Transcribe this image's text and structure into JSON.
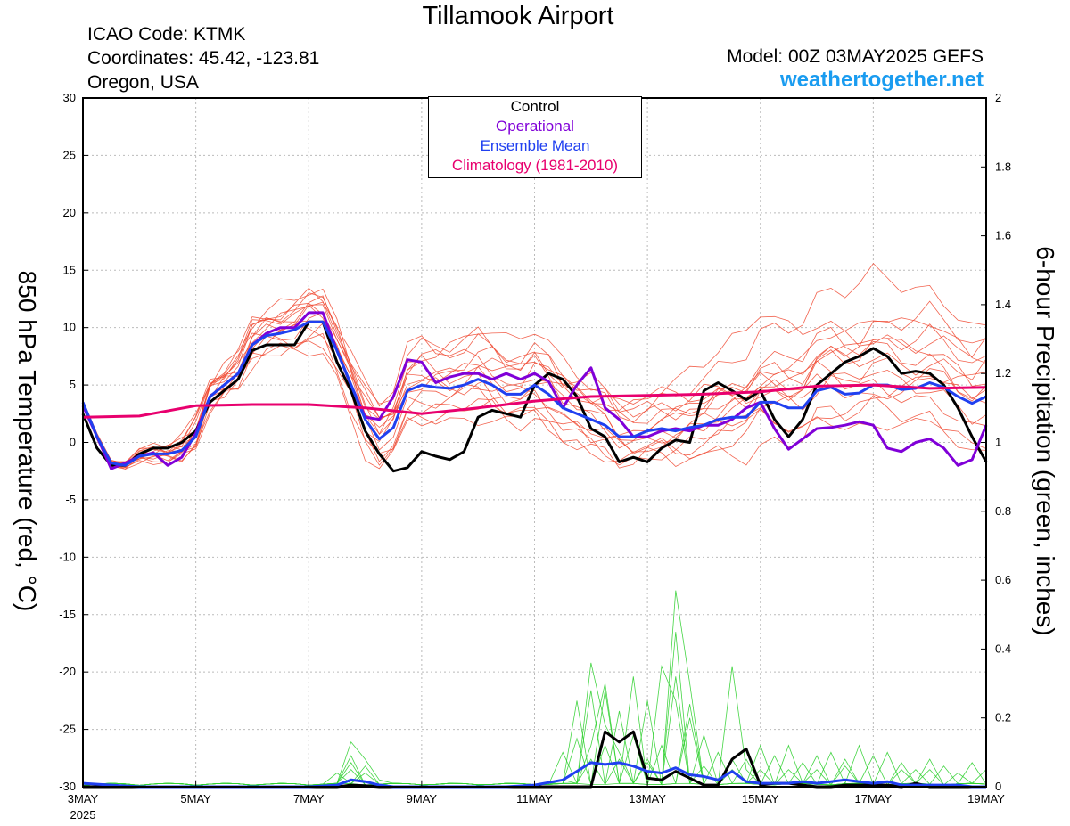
{
  "header": {
    "title": "Tillamook Airport",
    "icao": "ICAO Code: KTMK",
    "coordinates": "Coordinates: 45.42, -123.81",
    "region": "Oregon, USA",
    "model": "Model: 00Z 03MAY2025 GEFS",
    "site": "weathertogether.net"
  },
  "colors": {
    "control": "#000000",
    "operational": "#8000d8",
    "ensemble_mean": "#2040f0",
    "climatology": "#e8006e",
    "temp_members": "#f04830",
    "precip_members": "#30d030",
    "site": "#1a9cf0",
    "grid": "#bbbbbb"
  },
  "legend": [
    {
      "label": "Control",
      "color": "#000000"
    },
    {
      "label": "Operational",
      "color": "#8000d8"
    },
    {
      "label": "Ensemble Mean",
      "color": "#2040f0"
    },
    {
      "label": "Climatology (1981-2010)",
      "color": "#e8006e"
    }
  ],
  "chart_data": {
    "type": "line",
    "x_unit": "days since 3MAY 2025 00Z",
    "xlim": [
      0,
      16
    ],
    "x_ticks": [
      {
        "x": 0,
        "label": "3MAY",
        "sub": "2025"
      },
      {
        "x": 2,
        "label": "5MAY"
      },
      {
        "x": 4,
        "label": "7MAY"
      },
      {
        "x": 6,
        "label": "9MAY"
      },
      {
        "x": 8,
        "label": "11MAY"
      },
      {
        "x": 10,
        "label": "13MAY"
      },
      {
        "x": 12,
        "label": "15MAY"
      },
      {
        "x": 14,
        "label": "17MAY"
      },
      {
        "x": 16,
        "label": "19MAY"
      }
    ],
    "y_left": {
      "label": "850 hPa Temperature (red, °C)",
      "lim": [
        -30,
        30
      ],
      "ticks": [
        -30,
        -25,
        -20,
        -15,
        -10,
        -5,
        0,
        5,
        10,
        15,
        20,
        25,
        30
      ]
    },
    "y_right": {
      "label": "6-hour Precipitation (green, inches)",
      "lim": [
        0,
        2
      ],
      "ticks": [
        0,
        0.2,
        0.4,
        0.6,
        0.8,
        1,
        1.2,
        1.4,
        1.6,
        1.8,
        2
      ]
    },
    "grid": true,
    "legend_position": "top-center",
    "temperature_series": [
      {
        "name": "Control",
        "x": [
          0,
          0.25,
          0.5,
          0.75,
          1,
          1.25,
          1.5,
          1.75,
          2,
          2.25,
          2.5,
          2.75,
          3,
          3.25,
          3.5,
          3.75,
          4,
          4.25,
          4.5,
          4.75,
          5,
          5.25,
          5.5,
          5.75,
          6,
          6.25,
          6.5,
          6.75,
          7,
          7.25,
          7.5,
          7.75,
          8,
          8.25,
          8.5,
          8.75,
          9,
          9.25,
          9.5,
          9.75,
          10,
          10.25,
          10.5,
          10.75,
          11,
          11.25,
          11.5,
          11.75,
          12,
          12.25,
          12.5,
          12.75,
          13,
          13.25,
          13.5,
          13.75,
          14,
          14.25,
          14.5,
          14.75,
          15,
          15.25,
          15.5,
          15.75,
          16
        ],
        "y": [
          2.5,
          -0.5,
          -2,
          -2,
          -1,
          -0.5,
          -0.5,
          0,
          1,
          3.5,
          4.5,
          5.5,
          8,
          8.5,
          8.5,
          8.5,
          10.5,
          10.5,
          7,
          4.5,
          1,
          -1,
          -2.5,
          -2.2,
          -0.8,
          -1.2,
          -1.5,
          -0.8,
          2.2,
          2.8,
          2.5,
          2.2,
          5,
          6,
          5.5,
          4,
          1.2,
          0.5,
          -1.7,
          -1.3,
          -1.7,
          -0.5,
          0.2,
          0,
          4.5,
          5.2,
          4.5,
          3.7,
          4.5,
          2,
          0.5,
          2,
          5,
          6,
          7,
          7.5,
          8.2,
          7.5,
          6,
          6.2,
          6,
          5,
          3,
          0.5,
          -1.7
        ]
      },
      {
        "name": "Operational",
        "x": [
          0,
          0.25,
          0.5,
          0.75,
          1,
          1.25,
          1.5,
          1.75,
          2,
          2.25,
          2.5,
          2.75,
          3,
          3.25,
          3.5,
          3.75,
          4,
          4.25,
          4.5,
          4.75,
          5,
          5.25,
          5.5,
          5.75,
          6,
          6.25,
          6.5,
          6.75,
          7,
          7.25,
          7.5,
          7.75,
          8,
          8.25,
          8.5,
          8.75,
          9,
          9.25,
          9.5,
          9.75,
          10,
          10.25,
          10.5,
          10.75,
          11,
          11.25,
          11.5,
          11.75,
          12,
          12.25,
          12.5,
          12.75,
          13,
          13.25,
          13.5,
          13.75,
          14,
          14.25,
          14.5,
          14.75,
          15,
          15.25,
          15.5,
          15.75,
          16
        ],
        "y": [
          3.2,
          0.5,
          -2.3,
          -1.8,
          -1.2,
          -0.9,
          -2,
          -1.3,
          0.8,
          4,
          5,
          6,
          8.5,
          9.5,
          10,
          10,
          11.3,
          11.3,
          8,
          5,
          2.2,
          2,
          4,
          7.2,
          7,
          5.2,
          5.7,
          6,
          6,
          5.5,
          6,
          5.5,
          6,
          5.3,
          3,
          5,
          6.5,
          3,
          2,
          0.5,
          0.5,
          1,
          1.2,
          1,
          1.5,
          1.5,
          2,
          3,
          3.5,
          1.2,
          -0.6,
          0.3,
          1.2,
          1.3,
          1.5,
          1.8,
          1.5,
          -0.5,
          -0.8,
          0,
          0.3,
          -0.5,
          -2,
          -1.5,
          1.5
        ]
      },
      {
        "name": "Ensemble Mean",
        "x": [
          0,
          0.25,
          0.5,
          0.75,
          1,
          1.25,
          1.5,
          1.75,
          2,
          2.25,
          2.5,
          2.75,
          3,
          3.25,
          3.5,
          3.75,
          4,
          4.25,
          4.5,
          4.75,
          5,
          5.25,
          5.5,
          5.75,
          6,
          6.25,
          6.5,
          6.75,
          7,
          7.25,
          7.5,
          7.75,
          8,
          8.25,
          8.5,
          8.75,
          9,
          9.25,
          9.5,
          9.75,
          10,
          10.25,
          10.5,
          10.75,
          11,
          11.25,
          11.5,
          11.75,
          12,
          12.25,
          12.5,
          12.75,
          13,
          13.25,
          13.5,
          13.75,
          14,
          14.25,
          14.5,
          14.75,
          15,
          15.25,
          15.5,
          15.75,
          16
        ],
        "y": [
          3.5,
          0.5,
          -1.8,
          -2,
          -1.2,
          -1,
          -1,
          -0.7,
          0.5,
          4,
          5,
          6,
          8.5,
          9.3,
          9.5,
          9.8,
          10.5,
          10.5,
          8,
          5,
          2,
          0.3,
          1.3,
          4.5,
          5,
          4.8,
          4.7,
          5,
          5.5,
          5,
          4.2,
          4.2,
          5,
          4.2,
          3,
          2.5,
          2,
          1.5,
          0.5,
          0.5,
          1,
          1.2,
          1,
          1.3,
          1.5,
          2,
          2.2,
          2.2,
          3.5,
          3.5,
          3,
          3,
          4.5,
          4.8,
          4.2,
          4.3,
          5,
          5,
          4.6,
          4.7,
          5.2,
          4.8,
          4,
          3.4,
          4
        ]
      },
      {
        "name": "Climatology (1981-2010)",
        "x": [
          0,
          1,
          2,
          3,
          4,
          5,
          6,
          7,
          8,
          9,
          10,
          11,
          12,
          13,
          14,
          15,
          16
        ],
        "y": [
          2.2,
          2.3,
          3.2,
          3.3,
          3.3,
          3,
          2.5,
          3,
          3.6,
          4,
          4.1,
          4.2,
          4.4,
          4.9,
          5,
          4.7,
          4.8
        ]
      }
    ],
    "temp_member_offsets": [
      [
        0.5,
        1,
        2,
        1.5,
        2.5,
        1,
        0.8,
        1.5,
        2.5,
        2,
        1.2,
        1.8,
        3,
        2.5,
        3.5,
        4.5,
        3
      ],
      [
        -0.5,
        -1,
        -1.5,
        -1,
        -2.5,
        -3,
        -2,
        -1.5,
        -3,
        -2.5,
        -2,
        -3,
        -1,
        -2.5,
        -3.5,
        -3,
        -4
      ],
      [
        0,
        0.5,
        0.8,
        1,
        1.5,
        2.5,
        3.5,
        4,
        2.5,
        1.5,
        3,
        5.5,
        8,
        6,
        4,
        3.5,
        5
      ],
      [
        -0.3,
        -0.5,
        0,
        -1.5,
        -2,
        -1,
        -2.5,
        -3.5,
        -1.5,
        -0.5,
        -1,
        -2.5,
        -4,
        -2,
        -1.5,
        -3,
        -5
      ],
      [
        0.2,
        0.3,
        1.5,
        2.5,
        3,
        1.5,
        0.5,
        -0.5,
        1.5,
        3.5,
        2,
        1,
        2.5,
        4.5,
        6,
        5.5,
        3.5
      ],
      [
        0.4,
        -0.2,
        -1,
        0.5,
        1,
        2,
        1.5,
        -1,
        -2,
        -1,
        0.5,
        2.5,
        1,
        0,
        2,
        1,
        0.5
      ],
      [
        -0.1,
        0.8,
        2.5,
        1,
        -0.5,
        -1.5,
        -3,
        -2,
        0.5,
        1,
        -1.5,
        -2,
        0.5,
        2,
        0,
        -1.5,
        -2.5
      ],
      [
        0.6,
        0,
        -0.5,
        -2,
        -1,
        0.5,
        2.5,
        3.5,
        2,
        0,
        -1,
        0,
        1.5,
        3,
        4.5,
        3,
        1.5
      ],
      [
        -0.4,
        0.4,
        0.5,
        1.5,
        2,
        3,
        4,
        2,
        -0.5,
        -1.5,
        0.5,
        1.5,
        3.5,
        5,
        3.5,
        2,
        0
      ],
      [
        0.3,
        -0.6,
        -1.2,
        -0.5,
        0.5,
        -0.5,
        1,
        1.5,
        3,
        2.5,
        1.5,
        3,
        2,
        1,
        -1,
        0.5,
        2.5
      ],
      [
        -0.2,
        0.2,
        1,
        0,
        -1.5,
        -2,
        -1,
        0.5,
        -1,
        -2,
        -2.5,
        -1,
        0,
        1,
        1.5,
        -0.5,
        -1.5
      ],
      [
        0.1,
        0.6,
        1.2,
        2,
        1,
        0,
        -1.5,
        -0.5,
        1,
        2,
        3.5,
        2.5,
        1,
        2.5,
        5,
        6.5,
        4.5
      ],
      [
        -0.6,
        -0.3,
        0.3,
        0.8,
        2,
        1,
        0,
        2.5,
        3.5,
        1,
        -0.5,
        0.5,
        -1,
        -2.5,
        -1,
        1,
        0
      ],
      [
        0.2,
        -0.8,
        -0.8,
        -1,
        0,
        1.5,
        2,
        0,
        -2.5,
        -3,
        -1.5,
        0,
        2,
        3.5,
        2.5,
        1.5,
        3
      ],
      [
        -0.5,
        0.3,
        1.8,
        2.5,
        1.5,
        0.5,
        2.5,
        4.5,
        5,
        3,
        2,
        4,
        6,
        8,
        10,
        8,
        6
      ]
    ],
    "precipitation_series": [
      {
        "name": "Control",
        "x": [
          0,
          0.5,
          1,
          1.5,
          2,
          2.5,
          3,
          3.5,
          4,
          4.5,
          4.75,
          5,
          5.25,
          5.5,
          6,
          6.5,
          7,
          7.5,
          8,
          8.5,
          9,
          9.25,
          9.5,
          9.75,
          10,
          10.25,
          10.5,
          10.75,
          11,
          11.25,
          11.5,
          11.75,
          12,
          12.25,
          12.5,
          12.75,
          13,
          13.25,
          13.5,
          13.75,
          14,
          14.25,
          14.5,
          14.75,
          15,
          15.25,
          15.5,
          15.75,
          16
        ],
        "y": [
          0,
          0,
          0,
          0,
          0,
          0,
          0,
          0,
          0,
          0,
          0.005,
          0.003,
          0,
          0,
          0,
          0,
          0,
          0,
          0,
          0,
          0,
          0.16,
          0.13,
          0.16,
          0.025,
          0.02,
          0.045,
          0.025,
          0.005,
          0.005,
          0.08,
          0.11,
          0.005,
          0.01,
          0.01,
          0.005,
          0,
          0,
          0.005,
          0.005,
          0.005,
          0.005,
          0,
          0.01,
          0,
          0,
          0,
          0,
          0
        ]
      },
      {
        "name": "Ensemble Mean",
        "x": [
          0,
          0.5,
          1,
          1.5,
          2,
          2.5,
          3,
          3.5,
          4,
          4.5,
          4.75,
          5,
          5.25,
          5.5,
          6,
          6.5,
          7,
          7.5,
          8,
          8.5,
          9,
          9.25,
          9.5,
          9.75,
          10,
          10.25,
          10.5,
          10.75,
          11,
          11.25,
          11.5,
          11.75,
          12,
          12.25,
          12.5,
          12.75,
          13,
          13.25,
          13.5,
          13.75,
          14,
          14.25,
          14.5,
          14.75,
          15,
          15.25,
          15.5,
          15.75,
          16
        ],
        "y": [
          0.01,
          0.005,
          0,
          0,
          0,
          0,
          0,
          0,
          0,
          0.005,
          0.02,
          0.015,
          0.005,
          0,
          0,
          0,
          0,
          0,
          0.005,
          0.02,
          0.07,
          0.065,
          0.07,
          0.06,
          0.045,
          0.04,
          0.055,
          0.035,
          0.03,
          0.02,
          0.045,
          0.015,
          0.01,
          0.01,
          0.01,
          0.015,
          0.01,
          0.015,
          0.02,
          0.015,
          0.01,
          0.015,
          0.005,
          0.005,
          0.005,
          0.005,
          0.005,
          0,
          0
        ]
      }
    ],
    "precip_members": [
      [
        [
          4.75,
          0.13
        ],
        [
          5,
          0.08
        ],
        [
          5.25,
          0.02
        ],
        [
          8.5,
          0.1
        ],
        [
          9,
          0.36
        ],
        [
          9.25,
          0.18
        ],
        [
          9.5,
          0.1
        ],
        [
          10.5,
          0.57
        ],
        [
          10.75,
          0.3
        ],
        [
          11.5,
          0.35
        ],
        [
          11.75,
          0.05
        ],
        [
          13,
          0.05
        ],
        [
          14,
          0.09
        ],
        [
          15.25,
          0.06
        ]
      ],
      [
        [
          4.75,
          0.09
        ],
        [
          8.75,
          0.25
        ],
        [
          9.25,
          0.28
        ],
        [
          9.75,
          0.32
        ],
        [
          10.25,
          0.12
        ],
        [
          11.75,
          0.08
        ],
        [
          12.5,
          0.12
        ],
        [
          13.5,
          0.08
        ],
        [
          14.5,
          0.07
        ],
        [
          15.75,
          0.07
        ]
      ],
      [
        [
          5,
          0.06
        ],
        [
          8.5,
          0.02
        ],
        [
          9,
          0.28
        ],
        [
          9.5,
          0.22
        ],
        [
          10,
          0.08
        ],
        [
          10.5,
          0.45
        ],
        [
          11,
          0.15
        ],
        [
          12,
          0.05
        ],
        [
          13.25,
          0.1
        ],
        [
          14.75,
          0.05
        ]
      ],
      [
        [
          4.5,
          0.04
        ],
        [
          9,
          0.12
        ],
        [
          9.25,
          0.3
        ],
        [
          10,
          0.25
        ],
        [
          10.75,
          0.2
        ],
        [
          11.25,
          0.1
        ],
        [
          12.25,
          0.09
        ],
        [
          13.75,
          0.12
        ],
        [
          15,
          0.08
        ]
      ],
      [
        [
          4.75,
          0.07
        ],
        [
          8.75,
          0.14
        ],
        [
          9.5,
          0.08
        ],
        [
          10.25,
          0.35
        ],
        [
          10.5,
          0.25
        ],
        [
          11.5,
          0.05
        ],
        [
          12.75,
          0.07
        ],
        [
          14.25,
          0.1
        ],
        [
          15.5,
          0.04
        ]
      ],
      [
        [
          5,
          0.04
        ],
        [
          8.25,
          0.01
        ],
        [
          9,
          0.08
        ],
        [
          9.75,
          0.15
        ],
        [
          10.5,
          0.32
        ],
        [
          11,
          0.06
        ],
        [
          12,
          0.12
        ],
        [
          13,
          0.09
        ],
        [
          14.5,
          0.05
        ],
        [
          16,
          0.05
        ]
      ],
      [
        [
          4.75,
          0.05
        ],
        [
          9.25,
          0.12
        ],
        [
          10,
          0.07
        ],
        [
          10.75,
          0.24
        ],
        [
          11.5,
          0.08
        ],
        [
          12.5,
          0.05
        ],
        [
          13.5,
          0.06
        ],
        [
          15,
          0.05
        ]
      ]
    ]
  }
}
